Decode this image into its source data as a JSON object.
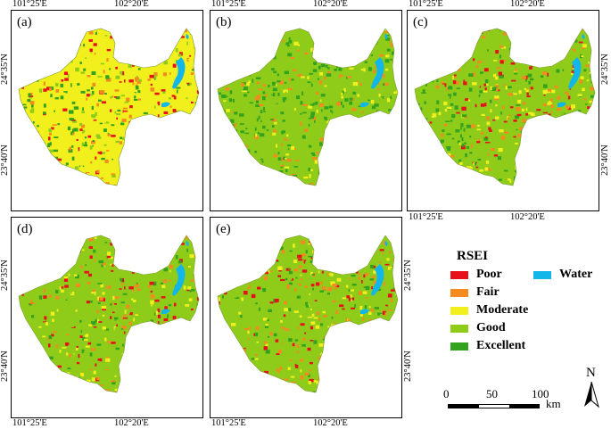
{
  "coords": {
    "lon_left": "101°25'E",
    "lon_right": "102°20'E",
    "lat_top": "24°35'N",
    "lat_bottom": "23°40'N"
  },
  "panels": [
    "(a)",
    "(b)",
    "(c)",
    "(d)",
    "(e)"
  ],
  "legend": {
    "title": "RSEI",
    "items": [
      {
        "label": "Poor",
        "color": "#e8101a"
      },
      {
        "label": "Fair",
        "color": "#f58a1e"
      },
      {
        "label": "Moderate",
        "color": "#f2f01c"
      },
      {
        "label": "Good",
        "color": "#8fcc1a"
      },
      {
        "label": "Excellent",
        "color": "#33a21f"
      },
      {
        "label": "Water",
        "color": "#13b6e8"
      }
    ]
  },
  "scalebar": {
    "ticks": [
      "0",
      "50",
      "100"
    ],
    "unit": "km"
  },
  "north_arrow": {
    "label": "N"
  }
}
